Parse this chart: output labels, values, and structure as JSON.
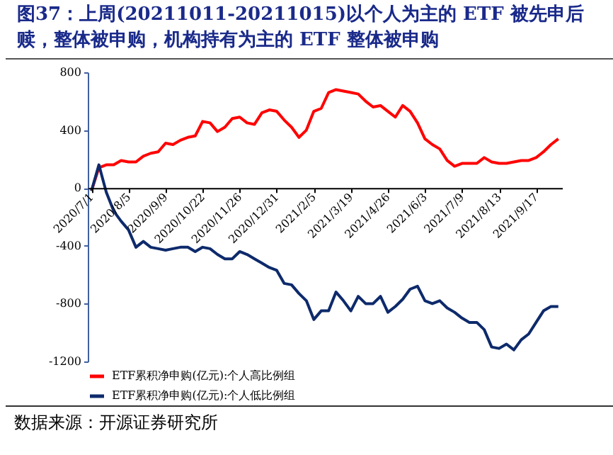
{
  "chart_data": {
    "type": "line",
    "title": "图37：上周(20211011-20211015)以个人为主的 ETF 被先申后赎，整体被申购，机构持有为主的 ETF 整体被申购",
    "annotations": [
      "数据来源：开源证券研究所"
    ],
    "categories": [
      "2020/7/1",
      null,
      null,
      null,
      null,
      "2020/8/5",
      null,
      null,
      null,
      null,
      "2020/9/9",
      null,
      null,
      null,
      null,
      "2020/10/22",
      null,
      null,
      null,
      null,
      "2020/11/26",
      null,
      null,
      null,
      null,
      "2020/12/31",
      null,
      null,
      null,
      null,
      "2021/2/5",
      null,
      null,
      null,
      null,
      "2021/3/19",
      null,
      null,
      null,
      null,
      "2021/4/26",
      null,
      null,
      null,
      null,
      "2021/6/3",
      null,
      null,
      null,
      null,
      "2021/7/9",
      null,
      null,
      null,
      null,
      "2021/8/13",
      null,
      null,
      null,
      null,
      "2021/9/17",
      null,
      null,
      null
    ],
    "series": [
      {
        "name": "ETF累积净申购(亿元):个人高比例组",
        "color": "#ff0000",
        "values": [
          -20,
          140,
          160,
          160,
          190,
          180,
          180,
          220,
          240,
          250,
          310,
          300,
          330,
          350,
          360,
          460,
          450,
          390,
          420,
          480,
          490,
          450,
          440,
          520,
          540,
          530,
          470,
          420,
          350,
          400,
          530,
          550,
          660,
          680,
          670,
          660,
          650,
          600,
          560,
          570,
          530,
          490,
          570,
          530,
          450,
          340,
          300,
          270,
          190,
          150,
          170,
          170,
          170,
          210,
          180,
          170,
          170,
          180,
          190,
          190,
          210,
          250,
          300,
          340
        ]
      },
      {
        "name": "ETF累积净申购(亿元):个人低比例组",
        "color": "#0d2a6b",
        "values": [
          -20,
          160,
          -30,
          -160,
          -230,
          -290,
          -410,
          -370,
          -410,
          -420,
          -430,
          -420,
          -410,
          -410,
          -440,
          -410,
          -420,
          -460,
          -490,
          -490,
          -440,
          -460,
          -490,
          -520,
          -550,
          -570,
          -660,
          -670,
          -730,
          -780,
          -910,
          -850,
          -850,
          -720,
          -780,
          -850,
          -750,
          -800,
          -800,
          -750,
          -860,
          -820,
          -770,
          -700,
          -680,
          -780,
          -800,
          -780,
          -830,
          -860,
          -900,
          -930,
          -930,
          -980,
          -1100,
          -1110,
          -1080,
          -1120,
          -1050,
          -1010,
          -930,
          -850,
          -820,
          -820
        ]
      }
    ],
    "ylim": [
      -1200,
      800
    ],
    "yticks": [
      {
        "value": -1200,
        "label": "-1200"
      },
      {
        "value": -800,
        "label": "-800"
      },
      {
        "value": -400,
        "label": "-400"
      },
      0,
      400,
      800
    ],
    "grid": false,
    "legend": "bottom",
    "line_style": "solid"
  }
}
